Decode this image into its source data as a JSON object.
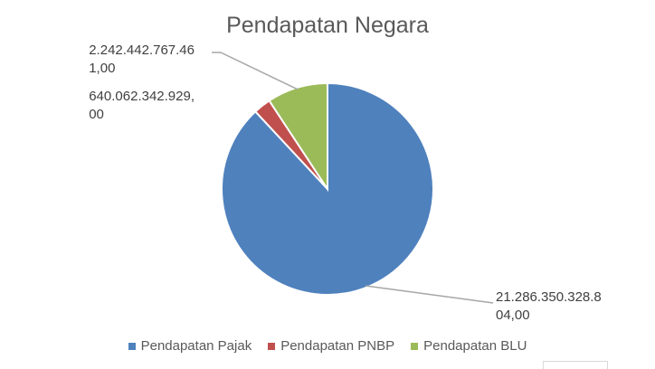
{
  "chart_data": {
    "type": "pie",
    "title": "Pendapatan Negara",
    "categories": [
      "Pendapatan Pajak",
      "Pendapatan PNBP",
      "Pendapatan BLU"
    ],
    "values": [
      21286350328804.0,
      640062342929.0,
      2242442767461.0
    ],
    "data_labels": [
      "21.286.350.328.8\n04,00",
      "640.062.342.929,\n00",
      "2.242.442.767.46\n1,00"
    ],
    "colors": [
      "#4F81BD",
      "#C0504D",
      "#9BBB59"
    ],
    "legend_position": "bottom"
  }
}
